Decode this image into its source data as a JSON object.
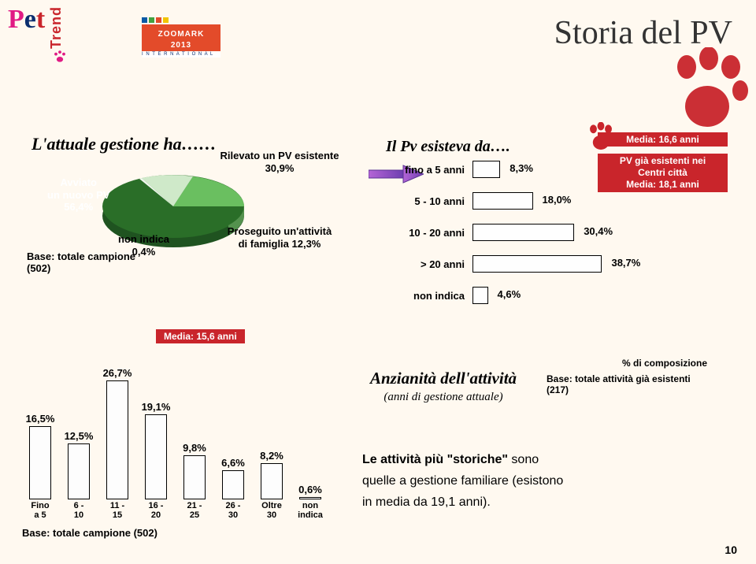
{
  "header": {
    "pet_p": "P",
    "pet_e": "e",
    "pet_t": "t",
    "trend": "Trend",
    "zoomark": "ZOOMARK 2013",
    "zoomark_sub": "I N T E R N A T I O N A L",
    "title": "Storia del PV"
  },
  "pie": {
    "title": "L'attuale gestione ha……",
    "slices": [
      {
        "label": "Avviato\nun nuovo PV\n56,4%",
        "color": "#2a6e28"
      },
      {
        "label": "Rilevato un PV esistente\n30,9%",
        "color": "#43a13f"
      },
      {
        "label": "Proseguito un'attività\ndi famiglia 12,3%",
        "color": "#000000"
      },
      {
        "label": "non indica\n0,4%",
        "color": "#000000"
      }
    ],
    "base_note": "Base: totale campione\n(502)"
  },
  "pv_age": {
    "title": "Il Pv esisteva da….",
    "media_top": "Media: 16,6 anni",
    "centri_text": "PV già esistenti nei\nCentri città\nMedia: 18,1 anni",
    "rows": [
      {
        "label": "fino a 5 anni",
        "value": 8.3,
        "text": "8,3%"
      },
      {
        "label": "5 - 10 anni",
        "value": 18.0,
        "text": "18,0%"
      },
      {
        "label": "10 - 20 anni",
        "value": 30.4,
        "text": "30,4%"
      },
      {
        "label": "> 20 anni",
        "value": 38.7,
        "text": "38,7%"
      },
      {
        "label": "non indica",
        "value": 4.6,
        "text": "4,6%"
      }
    ],
    "max": 40
  },
  "vbars": {
    "media": "Media: 15,6 anni",
    "max": 30,
    "bars": [
      {
        "x": "Fino\na 5",
        "v": 16.5,
        "t": "16,5%"
      },
      {
        "x": "6 -\n10",
        "v": 12.5,
        "t": "12,5%"
      },
      {
        "x": "11 -\n15",
        "v": 26.7,
        "t": "26,7%"
      },
      {
        "x": "16 -\n20",
        "v": 19.1,
        "t": "19,1%"
      },
      {
        "x": "21 -\n25",
        "v": 9.8,
        "t": "9,8%"
      },
      {
        "x": "26 -\n30",
        "v": 6.6,
        "t": "6,6%"
      },
      {
        "x": "Oltre\n30",
        "v": 8.2,
        "t": "8,2%"
      },
      {
        "x": "non\nindica",
        "v": 0.6,
        "t": "0,6%"
      }
    ],
    "base": "Base: totale campione (502)"
  },
  "anzianita": {
    "title": "Anzianità dell'attività",
    "sub": "(anni di gestione attuale)",
    "comp": "% di composizione",
    "comp_base": "Base: totale attività già esistenti\n(217)"
  },
  "body": "Le attività più \"storiche\" sono quelle a gestione familiare (esistono in media da 19,1 anni).",
  "body_strong": "Le attività più \"storiche\"",
  "page": "10"
}
